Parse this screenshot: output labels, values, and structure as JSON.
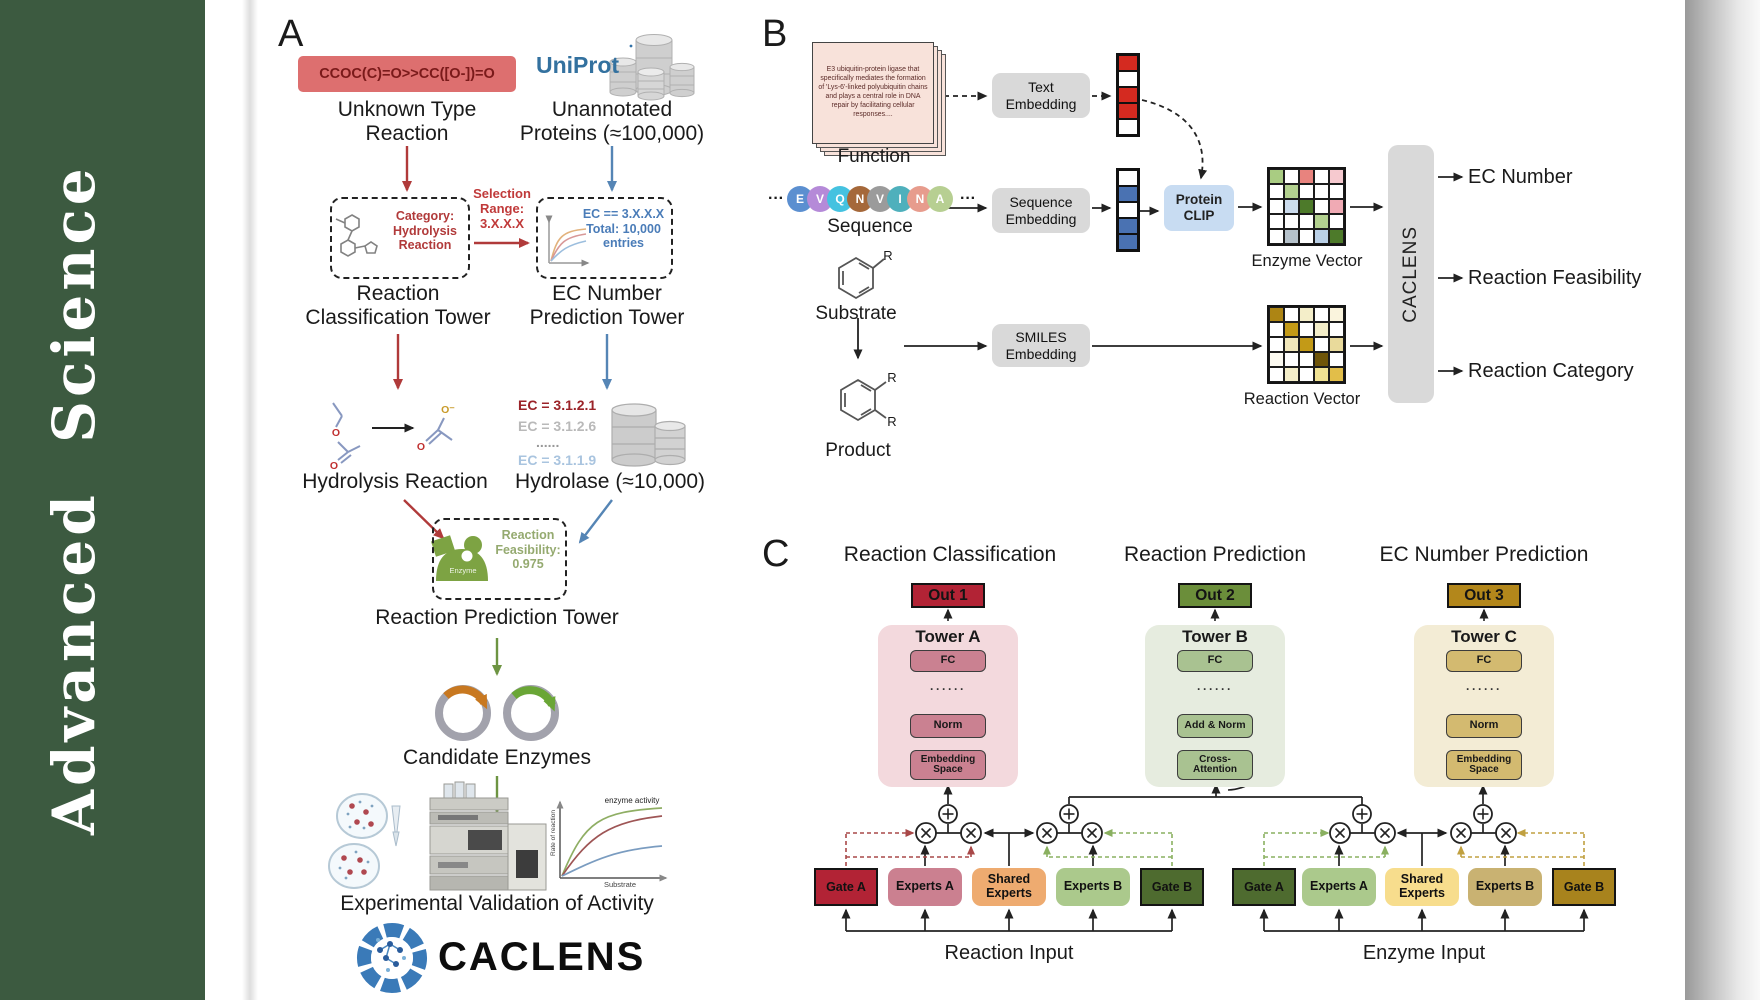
{
  "journal": "Advanced  Science",
  "panelA": {
    "label": "A",
    "smiles": "CCOC(C)=O>>CC([O-])=O",
    "unknown_reaction": "Unknown Type\nReaction",
    "uniprot_logo": "UniProt",
    "unannotated": "Unannotated\nProteins (≈100,000)",
    "category_box": "Category:\nHydrolysis\nReaction",
    "selection_range": "Selection\nRange:\n3.X.X.X",
    "ec_filter_box": "EC == 3.X.X.X\nTotal: 10,000\nentries",
    "classification_tower": "Reaction\nClassification Tower",
    "ec_prediction_tower": "EC Number\nPrediction Tower",
    "ec_list": [
      "EC = 3.1.2.1",
      "EC = 3.1.2.6",
      "......",
      "EC = 3.1.1.9"
    ],
    "hydrolysis_reaction": "Hydrolysis Reaction",
    "hydrolase": "Hydrolase (≈10,000)",
    "enzyme_badge": "Enzyme",
    "feasibility_box": "Reaction\nFeasibility:\n0.975",
    "reaction_prediction_tower": "Reaction Prediction Tower",
    "candidate_enzymes": "Candidate Enzymes",
    "activity_plot": {
      "title": "enzyme activity",
      "ylabel": "Rate of reaction",
      "xlabel": "Substrate"
    },
    "experimental_validation": "Experimental Validation of Activity",
    "caclens_wordmark": "CACLENS",
    "atoms": {
      "o": "O",
      "o_minus": "O⁻"
    }
  },
  "panelB": {
    "label": "B",
    "function_card_text": "E3 ubiquitin-protein ligase that specifically mediates the formation of 'Lys-6'-linked polyubiquitin chains and plays a central role in DNA repair by facilitating cellular responses....",
    "function_label": "Function",
    "ellipsis": "···",
    "sequence_residues": [
      {
        "letter": "E",
        "color": "#5b8fd0"
      },
      {
        "letter": "V",
        "color": "#b58ad8"
      },
      {
        "letter": "Q",
        "color": "#45c2e0"
      },
      {
        "letter": "N",
        "color": "#a5683a"
      },
      {
        "letter": "V",
        "color": "#9b9b9b"
      },
      {
        "letter": "I",
        "color": "#4fb0bc"
      },
      {
        "letter": "N",
        "color": "#e79c8d"
      },
      {
        "letter": "A",
        "color": "#b7cf92"
      }
    ],
    "sequence_label": "Sequence",
    "substrate_label": "Substrate",
    "product_label": "Product",
    "r_group": "R",
    "text_embedding": "Text\nEmbedding",
    "sequence_embedding": "Sequence\nEmbedding",
    "smiles_embedding": "SMILES\nEmbedding",
    "protein_clip": "Protein\nCLIP",
    "text_vector_cells": [
      "#d42a20",
      "#ffffff",
      "#d42a20",
      "#d42a20",
      "#ffffff"
    ],
    "sequence_vector_cells": [
      "#ffffff",
      "#4a72b2",
      "#ffffff",
      "#4a72b2",
      "#4a72b2"
    ],
    "enzyme_vector_label": "Enzyme Vector",
    "reaction_vector_label": "Reaction Vector",
    "enzyme_matrix": [
      [
        "#a9cc82",
        "#ffffff",
        "#e8837e",
        "#ffffff",
        "#f6c9cf"
      ],
      [
        "#ffffff",
        "#b3d18f",
        "#ffffff",
        "#ffffff",
        "#ffffff"
      ],
      [
        "#ffffff",
        "#ccdcee",
        "#4d7a2a",
        "#ffffff",
        "#f0aab4"
      ],
      [
        "#ffffff",
        "#ffffff",
        "#ffffff",
        "#b3d18f",
        "#ffffff"
      ],
      [
        "#ffffff",
        "#b6c2cb",
        "#ffffff",
        "#bad0e7",
        "#4d7a2a"
      ]
    ],
    "reaction_matrix": [
      [
        "#ad8514",
        "#ffffff",
        "#f4eec9",
        "#ffffff",
        "#faf4dd"
      ],
      [
        "#ffffff",
        "#c39a17",
        "#ffffff",
        "#f4eec9",
        "#ffffff"
      ],
      [
        "#ffffff",
        "#f1e7ba",
        "#c39a17",
        "#ffffff",
        "#e9da9b"
      ],
      [
        "#fcfaf1",
        "#ffffff",
        "#ffffff",
        "#6f5509",
        "#ffffff"
      ],
      [
        "#ffffff",
        "#f4eec9",
        "#ffffff",
        "#f0e293",
        "#e2be49"
      ]
    ],
    "caclens_block": "CACLENS",
    "outputs": [
      "EC Number",
      "Reaction Feasibility",
      "Reaction Category"
    ]
  },
  "panelC": {
    "label": "C",
    "column_titles": [
      "Reaction Classification",
      "Reaction Prediction",
      "EC Number Prediction"
    ],
    "out_labels": [
      "Out 1",
      "Out 2",
      "Out 3"
    ],
    "tower_labels": [
      "Tower A",
      "Tower B",
      "Tower C"
    ],
    "fc": "FC",
    "norm": "Norm",
    "add_norm": "Add & Norm",
    "cross_attention": "Cross-\nAttention",
    "embedding_space": "Embedding\nSpace",
    "dots": "······",
    "gate_a": "Gate A",
    "experts_a": "Experts A",
    "shared_experts": "Shared\nExperts",
    "experts_b": "Experts B",
    "gate_b": "Gate B",
    "reaction_input": "Reaction Input",
    "enzyme_input": "Enzyme Input"
  },
  "colors": {
    "journal_green": "#3c5a40",
    "smiles_box_bg": "#dd6f6f",
    "red_flow": "#b03a3a",
    "blue_flow": "#5585b5",
    "green_flow": "#6d9442",
    "tower_a_bg": "#f3d9dd",
    "tower_a_box": "#ca8191",
    "out1": "#b22335",
    "tower_b_bg": "#e6ecdf",
    "tower_b_box": "#a9c291",
    "out2": "#6b8e3a",
    "tower_c_bg": "#f3ecd5",
    "tower_c_box": "#d3ba70",
    "out3": "#b3871b",
    "shared_experts_left": "#eeab70",
    "shared_experts_right": "#f7dd8d",
    "experts_pink": "#cb8090",
    "experts_green": "#abc98c",
    "experts_tan": "#c9b272",
    "gate_crimson": "#b22335",
    "gate_dark_green": "#4e6b2f",
    "gate_gold": "#a8831d"
  }
}
